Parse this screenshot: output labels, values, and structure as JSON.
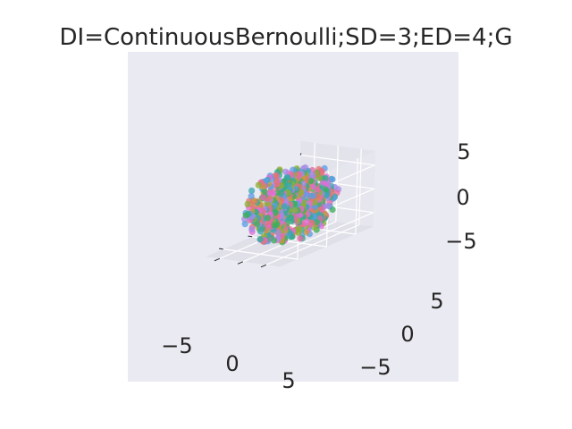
{
  "chart_data": {
    "type": "scatter",
    "title": "DI=ContinuousBernoulli;SD=3;ED=4;G",
    "xlabel": "",
    "ylabel": "",
    "zlabel": "",
    "xlim": [
      -8,
      8
    ],
    "ylim": [
      -8,
      8
    ],
    "zlim": [
      -8,
      8
    ],
    "grid": true,
    "legend": "none",
    "x_tick_labels": [
      "−5",
      "0",
      "5"
    ],
    "y_tick_labels": [
      "−5",
      "0",
      "5"
    ],
    "z_tick_labels": [
      "−5",
      "0",
      "5"
    ],
    "colors": [
      "#e5736f",
      "#c79b3b",
      "#8fae3a",
      "#3fb05a",
      "#37ab8e",
      "#3aa6b3",
      "#5b9ee6",
      "#a58ae6",
      "#e36bd6",
      "#e66aa4"
    ],
    "point_count": 720,
    "point_distribution": "roughly spherical cloud, radius about 6 data units, centered near origin",
    "background_color": "#eaeaf2",
    "grid_color": "#ffffff",
    "text_color": "#262626"
  }
}
